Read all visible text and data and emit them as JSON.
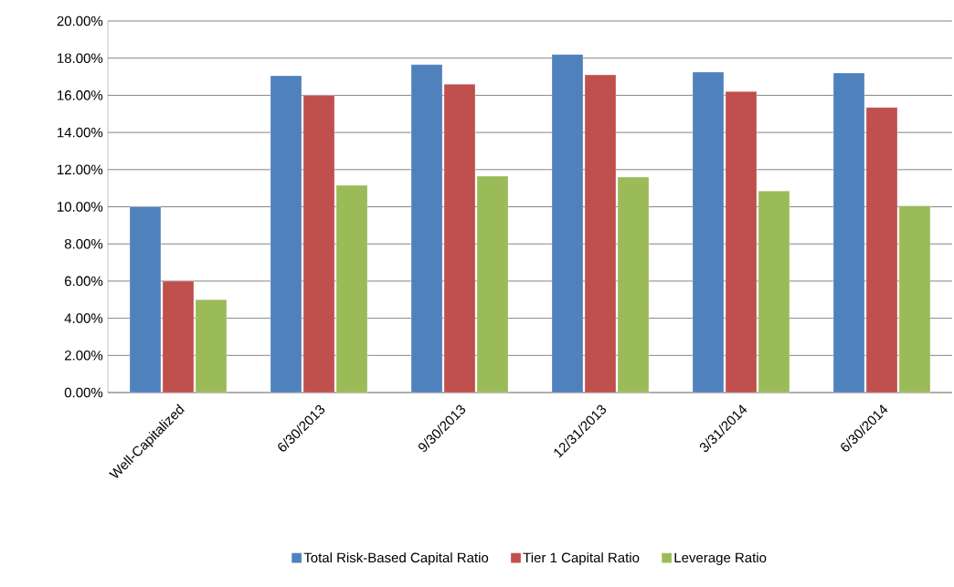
{
  "chart_data": {
    "type": "bar",
    "categories": [
      "Well-Capitalized",
      "6/30/2013",
      "9/30/2013",
      "12/31/2013",
      "3/31/2014",
      "6/30/2014"
    ],
    "series": [
      {
        "name": "Total Risk-Based Capital Ratio",
        "color": "#4f81bd",
        "values": [
          10,
          17.05,
          17.65,
          18.2,
          17.25,
          17.2
        ]
      },
      {
        "name": "Tier 1 Capital Ratio",
        "color": "#c0504d",
        "values": [
          6,
          16.0,
          16.6,
          17.1,
          16.2,
          15.35
        ]
      },
      {
        "name": "Leverage Ratio",
        "color": "#9bbb59",
        "values": [
          5,
          11.15,
          11.65,
          11.6,
          10.85,
          10.05
        ]
      }
    ],
    "ylim": [
      0,
      20
    ],
    "yticks": [
      {
        "value": 0,
        "label": "0.00%"
      },
      {
        "value": 2,
        "label": "2.00%"
      },
      {
        "value": 4,
        "label": "4.00%"
      },
      {
        "value": 6,
        "label": "6.00%"
      },
      {
        "value": 8,
        "label": "8.00%"
      },
      {
        "value": 10,
        "label": "10.00%"
      },
      {
        "value": 12,
        "label": "12.00%"
      },
      {
        "value": 14,
        "label": "14.00%"
      },
      {
        "value": 16,
        "label": "16.00%"
      },
      {
        "value": 18,
        "label": "18.00%"
      },
      {
        "value": 20,
        "label": "20.00%"
      }
    ],
    "grid": "y",
    "legend": "bottom"
  }
}
